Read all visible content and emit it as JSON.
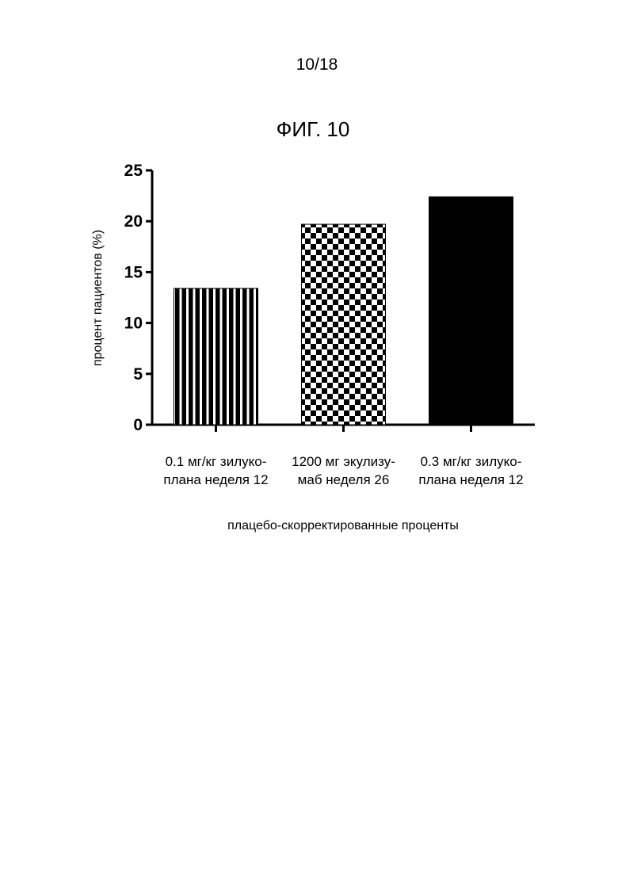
{
  "page": {
    "number": "10/18"
  },
  "chart_data": {
    "type": "bar",
    "title": "ФИГ. 10",
    "xlabel": "плацебо-скорректированные проценты",
    "ylabel": "процент пациентов (%)",
    "ylim": [
      0,
      25
    ],
    "yticks": [
      0,
      5,
      10,
      15,
      20,
      25
    ],
    "categories": [
      [
        "0.1 мг/кг зилуко-",
        "плана неделя 12"
      ],
      [
        "1200 мг экулизу-",
        "маб неделя 26"
      ],
      [
        "0.3 мг/кг зилуко-",
        "плана неделя 12"
      ]
    ],
    "values": [
      13.4,
      19.7,
      22.4
    ],
    "fills": [
      "vertical-stripes",
      "checkerboard",
      "solid"
    ],
    "colors": {
      "bar": "#000000",
      "background": "#ffffff"
    },
    "grid": false,
    "legend": "none"
  }
}
